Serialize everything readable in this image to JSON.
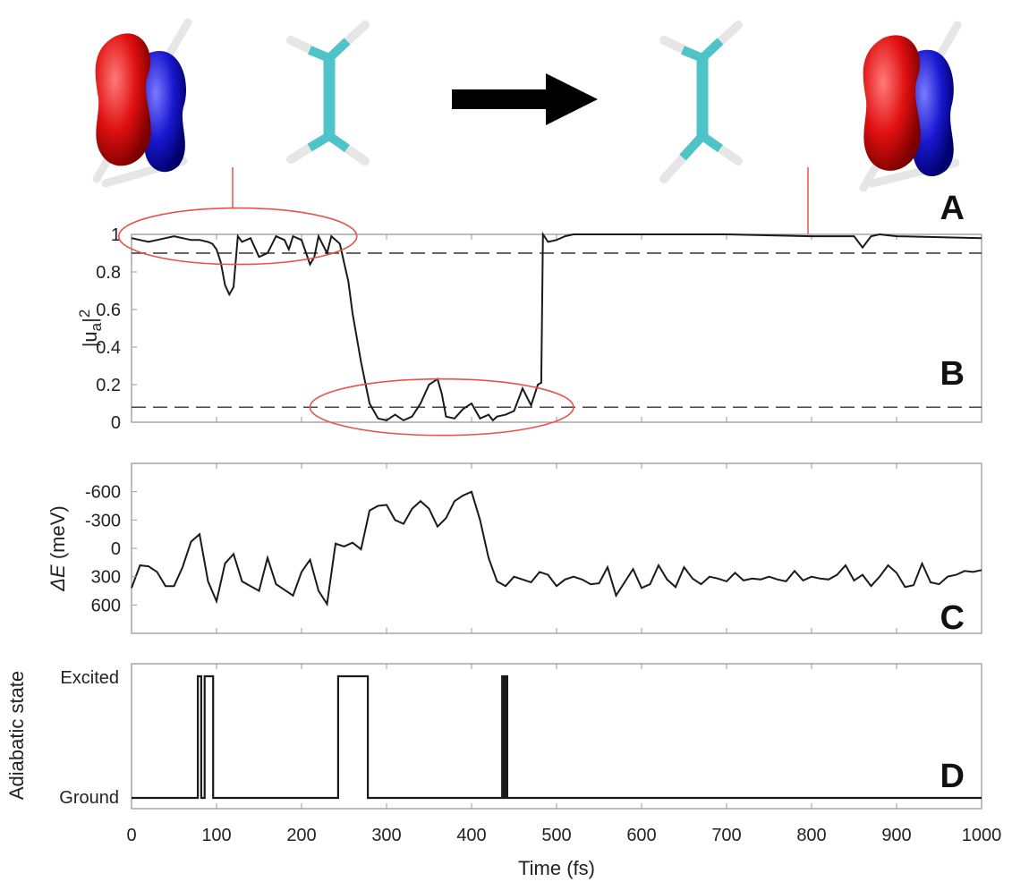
{
  "panel_labels": [
    "A",
    "B",
    "C",
    "D"
  ],
  "colors": {
    "curve": "#1a1a1a",
    "axis": "#888888",
    "highlight": "#e8524a",
    "orbital_positive": "#e01010",
    "orbital_negative": "#1818d0",
    "carbon": "#4fc4c8",
    "hydrogen": "#e6e6e6",
    "arrow": "#000000"
  },
  "molecules": {
    "icons": [
      "orbital-isosurface-icon",
      "ethylene-molecule-icon",
      "arrow-right-icon",
      "ethylene-molecule-icon",
      "orbital-isosurface-icon"
    ]
  },
  "chart_data": [
    {
      "type": "line",
      "panel": "B",
      "ylabel": "|u_a|^2",
      "ylabel_main": "|u",
      "ylabel_sub": "a",
      "ylabel_post": "|",
      "ylabel_sup": "2",
      "xlim": [
        0,
        1000
      ],
      "ylim": [
        0,
        1
      ],
      "yticks": [
        0,
        0.2,
        0.4,
        0.6,
        0.8,
        1
      ],
      "ytick_labels": [
        "0",
        "0.2",
        "0.4",
        "0.6",
        "0.8",
        "1"
      ],
      "reference_lines": [
        0.9,
        0.08
      ],
      "highlighted_regions": [
        {
          "x_center": 125,
          "y_center": 0.99,
          "x_halfwidth": 140,
          "y_halfwidth": 0.15
        },
        {
          "x_center": 365,
          "y_center": 0.08,
          "x_halfwidth": 155,
          "y_halfwidth": 0.15
        }
      ],
      "x": [
        0,
        10,
        20,
        30,
        40,
        50,
        60,
        70,
        80,
        90,
        95,
        100,
        105,
        110,
        115,
        120,
        125,
        130,
        140,
        150,
        160,
        170,
        180,
        185,
        190,
        200,
        210,
        215,
        220,
        230,
        235,
        240,
        245,
        250,
        255,
        260,
        270,
        280,
        290,
        300,
        310,
        320,
        330,
        340,
        350,
        360,
        365,
        370,
        380,
        390,
        400,
        410,
        420,
        425,
        430,
        440,
        450,
        460,
        470,
        478,
        482,
        484,
        490,
        500,
        510,
        520,
        600,
        700,
        800,
        850,
        860,
        870,
        880,
        900,
        1000
      ],
      "values": [
        0.98,
        0.97,
        0.96,
        0.97,
        0.98,
        0.99,
        0.98,
        0.97,
        0.97,
        0.96,
        0.95,
        0.92,
        0.85,
        0.73,
        0.68,
        0.72,
        0.99,
        0.96,
        0.98,
        0.88,
        0.9,
        0.99,
        0.97,
        0.92,
        0.99,
        0.97,
        0.84,
        0.88,
        0.99,
        0.9,
        0.99,
        0.97,
        0.95,
        0.85,
        0.75,
        0.58,
        0.32,
        0.1,
        0.02,
        0.01,
        0.04,
        0.01,
        0.03,
        0.1,
        0.2,
        0.23,
        0.15,
        0.03,
        0.02,
        0.07,
        0.1,
        0.02,
        0.04,
        0.01,
        0.03,
        0.04,
        0.06,
        0.18,
        0.09,
        0.2,
        0.21,
        1.0,
        0.96,
        0.97,
        0.99,
        1.0,
        1.0,
        1.0,
        0.99,
        0.99,
        0.93,
        0.99,
        1.0,
        0.99,
        0.98
      ]
    },
    {
      "type": "line",
      "panel": "C",
      "ylabel_symbol": "ΔE",
      "ylabel_unit": "(meV)",
      "xlim": [
        0,
        1000
      ],
      "ylim": [
        -900,
        900
      ],
      "y_inverted": true,
      "yticks": [
        -600,
        -300,
        0,
        300,
        600
      ],
      "ytick_labels": [
        "-600",
        "-300",
        "0",
        "300",
        "600"
      ],
      "x": [
        0,
        10,
        20,
        30,
        40,
        50,
        60,
        70,
        80,
        90,
        100,
        110,
        120,
        130,
        140,
        150,
        160,
        170,
        180,
        190,
        200,
        210,
        220,
        230,
        240,
        250,
        260,
        270,
        280,
        290,
        300,
        310,
        320,
        330,
        340,
        350,
        360,
        370,
        380,
        390,
        400,
        410,
        420,
        430,
        440,
        450,
        460,
        470,
        480,
        490,
        500,
        510,
        520,
        530,
        540,
        550,
        560,
        570,
        580,
        590,
        600,
        610,
        620,
        630,
        640,
        650,
        660,
        670,
        680,
        690,
        700,
        710,
        720,
        730,
        740,
        750,
        760,
        770,
        780,
        790,
        800,
        810,
        820,
        830,
        840,
        850,
        860,
        870,
        880,
        890,
        900,
        910,
        920,
        930,
        940,
        950,
        960,
        970,
        980,
        990,
        1000
      ],
      "values": [
        420,
        180,
        190,
        250,
        400,
        400,
        200,
        -70,
        -150,
        350,
        560,
        160,
        60,
        350,
        400,
        450,
        100,
        380,
        440,
        500,
        250,
        120,
        450,
        590,
        -50,
        -20,
        -60,
        10,
        -400,
        -450,
        -460,
        -300,
        -260,
        -420,
        -500,
        -420,
        -230,
        -320,
        -500,
        -560,
        -600,
        -300,
        100,
        350,
        400,
        300,
        330,
        360,
        250,
        280,
        400,
        330,
        300,
        330,
        380,
        370,
        200,
        500,
        360,
        220,
        420,
        380,
        180,
        330,
        410,
        200,
        320,
        380,
        300,
        320,
        350,
        260,
        340,
        320,
        330,
        300,
        330,
        350,
        240,
        340,
        300,
        320,
        330,
        280,
        180,
        340,
        280,
        400,
        300,
        180,
        260,
        410,
        390,
        160,
        360,
        380,
        300,
        280,
        240,
        250,
        230
      ]
    },
    {
      "type": "line",
      "panel": "D",
      "xlabel": "Time (fs)",
      "ylabel": "Adiabatic state",
      "xlim": [
        0,
        1000
      ],
      "xticks": [
        0,
        100,
        200,
        300,
        400,
        500,
        600,
        700,
        800,
        900,
        1000
      ],
      "xtick_labels": [
        "0",
        "100",
        "200",
        "300",
        "400",
        "500",
        "600",
        "700",
        "800",
        "900",
        "1000"
      ],
      "ytick_labels": [
        "Ground",
        "Excited"
      ],
      "x": [
        0,
        78,
        78,
        82,
        82,
        86,
        86,
        96,
        96,
        243,
        243,
        278,
        278,
        436,
        436,
        438,
        438,
        440,
        440,
        442,
        442,
        1000
      ],
      "values": [
        0,
        0,
        1,
        1,
        0,
        0,
        1,
        1,
        0,
        0,
        1,
        1,
        0,
        0,
        1,
        1,
        0,
        0,
        1,
        1,
        0,
        0
      ]
    }
  ]
}
